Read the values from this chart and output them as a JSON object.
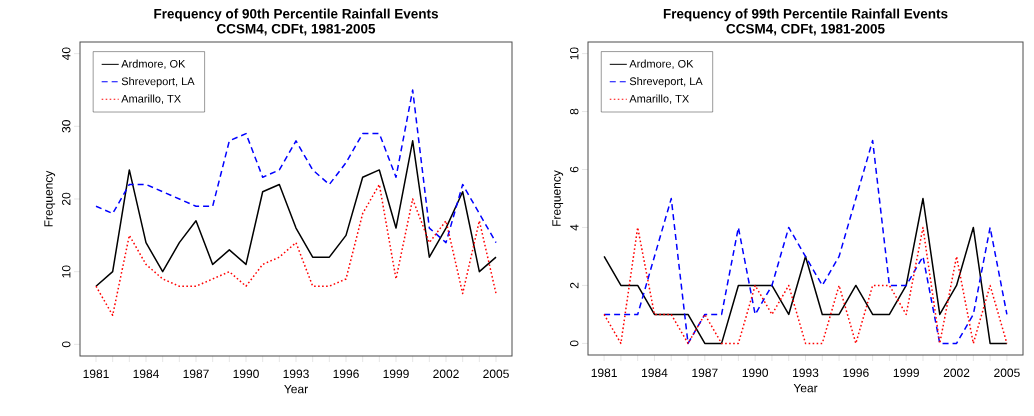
{
  "chart_data": [
    {
      "type": "line",
      "title": "Frequency of 90th Percentile Rainfall Events",
      "subtitle": "CCSM4, CDFt, 1981-2005",
      "xlabel": "Year",
      "ylabel": "Frequency",
      "x": [
        1981,
        1982,
        1983,
        1984,
        1985,
        1986,
        1987,
        1988,
        1989,
        1990,
        1991,
        1992,
        1993,
        1994,
        1995,
        1996,
        1997,
        1998,
        1999,
        2000,
        2001,
        2002,
        2003,
        2004,
        2005
      ],
      "series": [
        {
          "name": "Ardmore, OK",
          "color": "#000000",
          "line_style": "solid",
          "values": [
            8,
            10,
            24,
            14,
            10,
            14,
            17,
            11,
            13,
            11,
            21,
            22,
            16,
            12,
            12,
            15,
            23,
            24,
            16,
            28,
            12,
            16,
            21,
            10,
            12
          ]
        },
        {
          "name": "Shreveport, LA",
          "color": "#0000ff",
          "line_style": "dashed",
          "values": [
            19,
            18,
            22,
            22,
            21,
            20,
            19,
            19,
            28,
            29,
            23,
            24,
            28,
            24,
            22,
            25,
            29,
            29,
            23,
            35,
            16,
            14,
            22,
            18,
            14
          ]
        },
        {
          "name": "Amarillo, TX",
          "color": "#ff0000",
          "line_style": "dotted",
          "values": [
            8,
            4,
            15,
            11,
            9,
            8,
            8,
            9,
            10,
            8,
            11,
            12,
            14,
            8,
            8,
            9,
            18,
            22,
            9,
            20,
            14,
            17,
            7,
            17,
            7
          ]
        }
      ],
      "xlim": [
        1980.04,
        2005.96
      ],
      "ylim": [
        -1.6,
        41.6
      ],
      "xticks": [
        1981,
        {
          "value": 1982,
          "label": null
        },
        {
          "value": 1983,
          "label": null
        },
        1984,
        {
          "value": 1985,
          "label": null
        },
        {
          "value": 1986,
          "label": null
        },
        1987,
        {
          "value": 1988,
          "label": null
        },
        {
          "value": 1989,
          "label": null
        },
        1990,
        {
          "value": 1991,
          "label": null
        },
        {
          "value": 1992,
          "label": null
        },
        1993,
        {
          "value": 1994,
          "label": null
        },
        {
          "value": 1995,
          "label": null
        },
        1996,
        {
          "value": 1997,
          "label": null
        },
        {
          "value": 1998,
          "label": null
        },
        1999,
        {
          "value": 2000,
          "label": null
        },
        {
          "value": 2001,
          "label": null
        },
        2002,
        {
          "value": 2003,
          "label": null
        },
        {
          "value": 2004,
          "label": null
        },
        2005
      ],
      "yticks": [
        0,
        10,
        20,
        30,
        40
      ],
      "legend": "top left",
      "grid": false
    },
    {
      "type": "line",
      "title": "Frequency of 99th Percentile Rainfall Events",
      "subtitle": "CCSM4, CDFt, 1981-2005",
      "xlabel": "Year",
      "ylabel": "Frequency",
      "x": [
        1981,
        1982,
        1983,
        1984,
        1985,
        1986,
        1987,
        1988,
        1989,
        1990,
        1991,
        1992,
        1993,
        1994,
        1995,
        1996,
        1997,
        1998,
        1999,
        2000,
        2001,
        2002,
        2003,
        2004,
        2005
      ],
      "series": [
        {
          "name": "Ardmore, OK",
          "color": "#000000",
          "line_style": "solid",
          "values": [
            3,
            2,
            2,
            1,
            1,
            1,
            0,
            0,
            2,
            2,
            2,
            1,
            3,
            1,
            1,
            2,
            1,
            1,
            2,
            5,
            1,
            2,
            4,
            0,
            0
          ]
        },
        {
          "name": "Shreveport, LA",
          "color": "#0000ff",
          "line_style": "dashed",
          "values": [
            1,
            1,
            1,
            3,
            5,
            0,
            1,
            1,
            4,
            1,
            2,
            4,
            3,
            2,
            3,
            5,
            7,
            2,
            2,
            3,
            0,
            0,
            1,
            4,
            1
          ]
        },
        {
          "name": "Amarillo, TX",
          "color": "#ff0000",
          "line_style": "dotted",
          "values": [
            1,
            0,
            4,
            1,
            1,
            0,
            1,
            0,
            0,
            2,
            1,
            2,
            0,
            0,
            2,
            0,
            2,
            2,
            1,
            4,
            0,
            3,
            0,
            2,
            0
          ]
        }
      ],
      "xlim": [
        1980.04,
        2005.96
      ],
      "ylim": [
        -0.4,
        10.4
      ],
      "xticks": [
        1981,
        {
          "value": 1982,
          "label": null
        },
        {
          "value": 1983,
          "label": null
        },
        1984,
        {
          "value": 1985,
          "label": null
        },
        {
          "value": 1986,
          "label": null
        },
        1987,
        {
          "value": 1988,
          "label": null
        },
        {
          "value": 1989,
          "label": null
        },
        1990,
        {
          "value": 1991,
          "label": null
        },
        {
          "value": 1992,
          "label": null
        },
        1993,
        {
          "value": 1994,
          "label": null
        },
        {
          "value": 1995,
          "label": null
        },
        1996,
        {
          "value": 1997,
          "label": null
        },
        {
          "value": 1998,
          "label": null
        },
        1999,
        {
          "value": 2000,
          "label": null
        },
        {
          "value": 2001,
          "label": null
        },
        2002,
        {
          "value": 2003,
          "label": null
        },
        {
          "value": 2004,
          "label": null
        },
        2005
      ],
      "yticks": [
        0,
        2,
        4,
        6,
        8,
        10
      ],
      "legend": "top left",
      "grid": false
    }
  ]
}
